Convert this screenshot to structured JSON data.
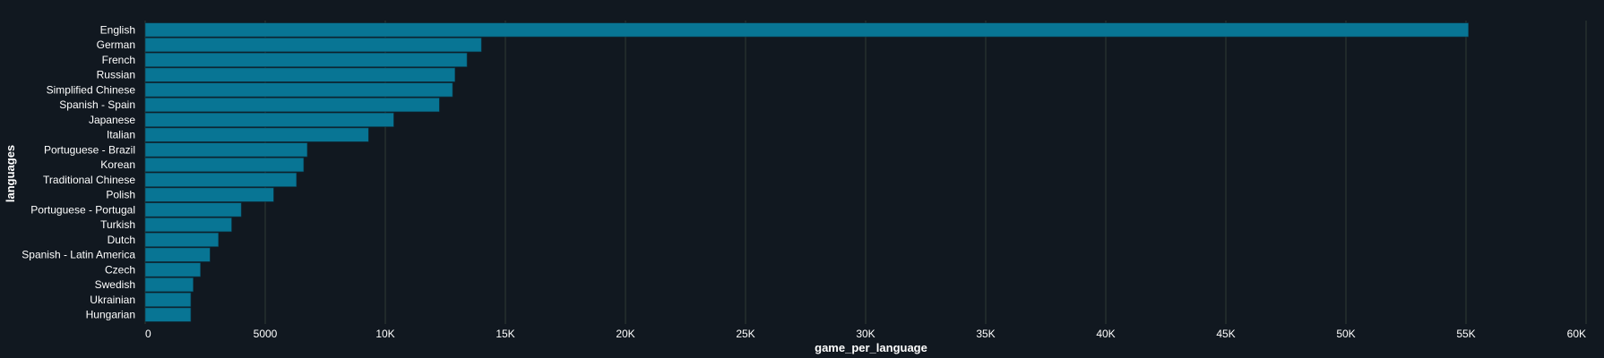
{
  "chart_data": {
    "type": "bar",
    "orientation": "horizontal",
    "title": "",
    "xlabel": "game_per_language",
    "ylabel": "languages",
    "categories": [
      "English",
      "German",
      "French",
      "Russian",
      "Simplified Chinese",
      "Spanish - Spain",
      "Japanese",
      "Italian",
      "Portuguese - Brazil",
      "Korean",
      "Traditional Chinese",
      "Polish",
      "Portuguese - Portugal",
      "Turkish",
      "Dutch",
      "Spanish - Latin America",
      "Czech",
      "Swedish",
      "Ukrainian",
      "Hungarian"
    ],
    "values": [
      55100,
      14000,
      13400,
      12900,
      12800,
      12250,
      10350,
      9300,
      6750,
      6600,
      6300,
      5350,
      4000,
      3600,
      3050,
      2700,
      2300,
      2000,
      1900,
      1900
    ],
    "xlim": [
      0,
      60000
    ],
    "xticks": [
      {
        "value": 0,
        "label": "0"
      },
      {
        "value": 5000,
        "label": "5000"
      },
      {
        "value": 10000,
        "label": "10K"
      },
      {
        "value": 15000,
        "label": "15K"
      },
      {
        "value": 20000,
        "label": "20K"
      },
      {
        "value": 25000,
        "label": "25K"
      },
      {
        "value": 30000,
        "label": "30K"
      },
      {
        "value": 35000,
        "label": "35K"
      },
      {
        "value": 40000,
        "label": "40K"
      },
      {
        "value": 45000,
        "label": "45K"
      },
      {
        "value": 50000,
        "label": "50K"
      },
      {
        "value": 55000,
        "label": "55K"
      },
      {
        "value": 60000,
        "label": "60K"
      }
    ],
    "grid": "vertical",
    "colors": {
      "background": "#111820",
      "bar": "#087594",
      "grid": "#2f3a33",
      "text": "#ffffff"
    }
  }
}
